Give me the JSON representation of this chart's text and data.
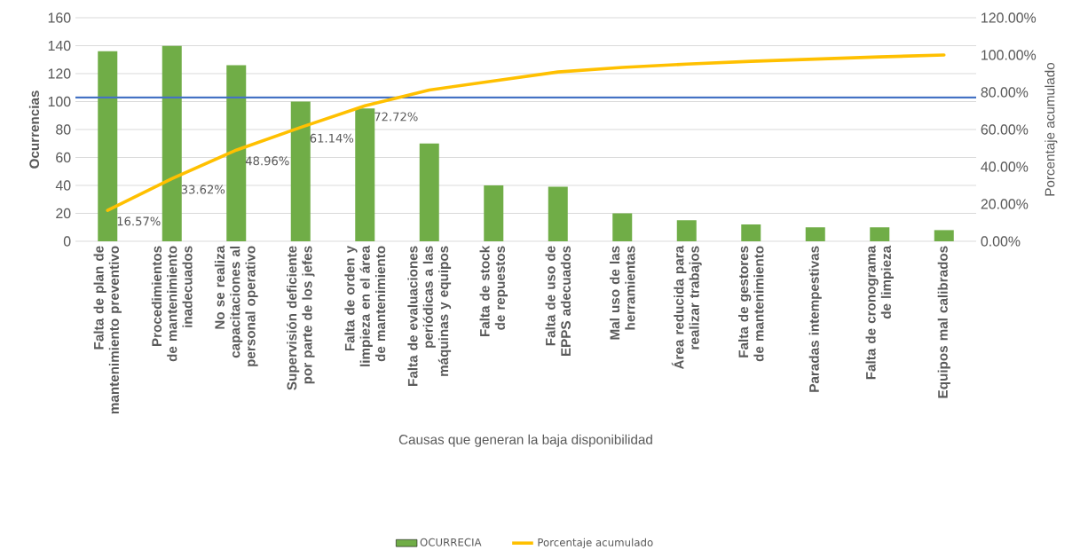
{
  "chart_data": {
    "type": "bar",
    "xlabel": "Causas que generan la baja disponibilidad",
    "ylabel": "Ocurrencias",
    "y2label": "Porcentaje acumulado",
    "categories": [
      "Falta de plan de mantenimiento preventivo",
      "Procedimientos de mantenimiento inadecuados",
      "No se realiza capacitaciones al personal operativo",
      "Supervisión deficiente por parte de los jefes",
      "Falta de orden y limpieza en el área de mantenimiento",
      "Falta de evaluaciones periódicas a las máquinas y equipos",
      "Falta de stock de repuestos",
      "Falta de uso de EPPS adecuados",
      "Mal uso de las herramientas",
      "Área reducida para realizar trabajos",
      "Falta de gestores de mantenimiento",
      "Paradas intempestivas",
      "Falta de cronograma de limpieza",
      "Equipos mal calibrados"
    ],
    "series": [
      {
        "name": "OCURRECIA",
        "color": "#70ad47",
        "values": [
          136,
          140,
          126,
          100,
          95,
          70,
          40,
          39,
          20,
          15,
          12,
          10,
          10,
          8
        ]
      },
      {
        "name": "Porcentaje acumulado",
        "type": "line",
        "axis": "y2",
        "color": "#ffc000",
        "values": [
          16.57,
          33.62,
          48.96,
          61.14,
          72.72,
          81.2,
          86.1,
          90.9,
          93.3,
          95.1,
          96.6,
          97.8,
          99.0,
          100
        ],
        "value_labels": [
          "16.57%",
          "33.62%",
          "48.96%",
          "61.14%",
          "72.72%",
          null,
          null,
          null,
          null,
          null,
          null,
          null,
          null,
          null
        ]
      }
    ],
    "ylim": [
      0,
      160
    ],
    "yticks": [
      0,
      20,
      40,
      60,
      80,
      100,
      120,
      140,
      160
    ],
    "y2lim": [
      0,
      120
    ],
    "y2ticks": [
      {
        "value": 0,
        "label": "0.00%"
      },
      {
        "value": 20,
        "label": "20.00%"
      },
      {
        "value": 40,
        "label": "40.00%"
      },
      {
        "value": 60,
        "label": "60.00%"
      },
      {
        "value": 80,
        "label": "80.00%"
      },
      {
        "value": 100,
        "label": "100.00%"
      },
      {
        "value": 120,
        "label": "120.00%"
      }
    ],
    "ref_lines": [
      {
        "axis": "y",
        "value": 103,
        "color": "#4472c4"
      }
    ],
    "grid": "y",
    "legend": "bottom"
  }
}
